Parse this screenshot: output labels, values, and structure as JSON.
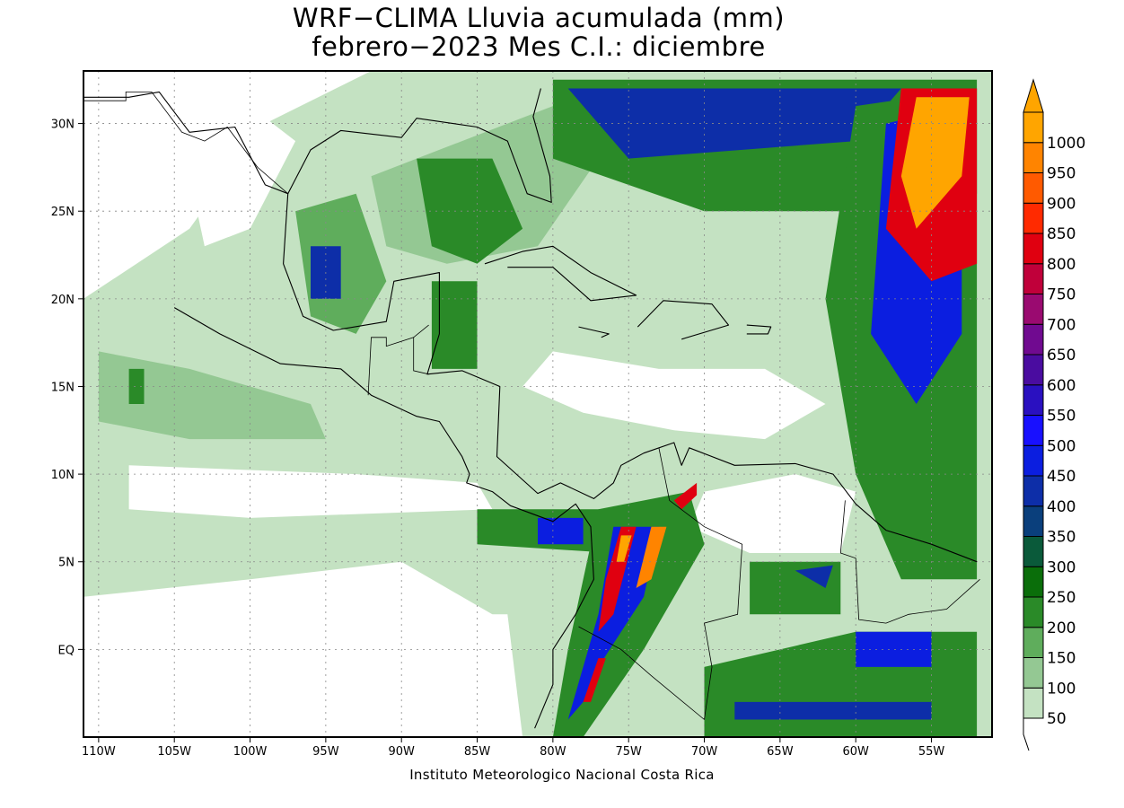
{
  "title_line1": "WRF−CLIMA Lluvia acumulada (mm)",
  "title_line2": "febrero−2023 Mes C.I.: diciembre",
  "credit": "Instituto Meteorologico Nacional Costa Rica",
  "x_ticks": [
    "110W",
    "105W",
    "100W",
    "95W",
    "90W",
    "85W",
    "80W",
    "75W",
    "70W",
    "65W",
    "60W",
    "55W"
  ],
  "y_ticks": [
    "30N",
    "25N",
    "20N",
    "15N",
    "10N",
    "5N",
    "EQ"
  ],
  "colorbar": {
    "labels": [
      "50",
      "100",
      "150",
      "200",
      "250",
      "300",
      "350",
      "400",
      "450",
      "500",
      "550",
      "600",
      "650",
      "700",
      "750",
      "800",
      "850",
      "900",
      "950",
      "1000"
    ],
    "colors": [
      "#c4e2c2",
      "#94c893",
      "#5fad5c",
      "#2a8a28",
      "#0a6e0a",
      "#0a5a3a",
      "#0a3f7c",
      "#0d2ea8",
      "#0b1ee0",
      "#1810ff",
      "#2a10c0",
      "#4a0ca0",
      "#700a90",
      "#9a0a70",
      "#c0003a",
      "#e00010",
      "#ff2a00",
      "#ff5a00",
      "#ff8400",
      "#ffa500"
    ]
  },
  "map": {
    "lon_min": -111,
    "lon_max": -51,
    "lat_min": -5,
    "lat_max": 33,
    "ocean": "#ffffff",
    "coast": "#000000"
  }
}
